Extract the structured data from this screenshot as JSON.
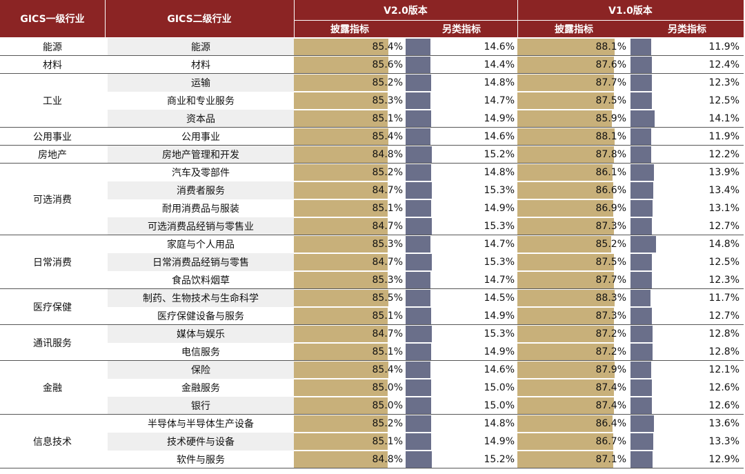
{
  "header": {
    "gics1": "GICS一级行业",
    "gics2": "GICS二级行业",
    "v2": "V2.0版本",
    "v1": "V1.0版本",
    "disclosure": "披露指标",
    "alternative": "另类指标"
  },
  "colors": {
    "header_bg": "#8b2424",
    "gold_bar": "#c8b07a",
    "blue_bar": "#6a6f8a"
  },
  "groups": [
    {
      "l1": "能源",
      "rows": [
        {
          "l2": "能源",
          "v2_disc": "85.4%",
          "v2_alt": "14.6%",
          "v1_disc": "88.1%",
          "v1_alt": "11.9%"
        }
      ]
    },
    {
      "l1": "材料",
      "rows": [
        {
          "l2": "材料",
          "v2_disc": "85.6%",
          "v2_alt": "14.4%",
          "v1_disc": "87.6%",
          "v1_alt": "12.4%"
        }
      ]
    },
    {
      "l1": "工业",
      "rows": [
        {
          "l2": "运输",
          "v2_disc": "85.2%",
          "v2_alt": "14.8%",
          "v1_disc": "87.7%",
          "v1_alt": "12.3%"
        },
        {
          "l2": "商业和专业服务",
          "v2_disc": "85.3%",
          "v2_alt": "14.7%",
          "v1_disc": "87.5%",
          "v1_alt": "12.5%"
        },
        {
          "l2": "资本品",
          "v2_disc": "85.1%",
          "v2_alt": "14.9%",
          "v1_disc": "85.9%",
          "v1_alt": "14.1%"
        }
      ]
    },
    {
      "l1": "公用事业",
      "rows": [
        {
          "l2": "公用事业",
          "v2_disc": "85.4%",
          "v2_alt": "14.6%",
          "v1_disc": "88.1%",
          "v1_alt": "11.9%"
        }
      ]
    },
    {
      "l1": "房地产",
      "rows": [
        {
          "l2": "房地产管理和开发",
          "v2_disc": "84.8%",
          "v2_alt": "15.2%",
          "v1_disc": "87.8%",
          "v1_alt": "12.2%"
        }
      ]
    },
    {
      "l1": "可选消费",
      "rows": [
        {
          "l2": "汽车及零部件",
          "v2_disc": "85.2%",
          "v2_alt": "14.8%",
          "v1_disc": "86.1%",
          "v1_alt": "13.9%"
        },
        {
          "l2": "消费者服务",
          "v2_disc": "84.7%",
          "v2_alt": "15.3%",
          "v1_disc": "86.6%",
          "v1_alt": "13.4%"
        },
        {
          "l2": "耐用消费品与服装",
          "v2_disc": "85.1%",
          "v2_alt": "14.9%",
          "v1_disc": "86.9%",
          "v1_alt": "13.1%"
        },
        {
          "l2": "可选消费品经销与零售业",
          "v2_disc": "84.7%",
          "v2_alt": "15.3%",
          "v1_disc": "87.3%",
          "v1_alt": "12.7%"
        }
      ]
    },
    {
      "l1": "日常消费",
      "rows": [
        {
          "l2": "家庭与个人用品",
          "v2_disc": "85.3%",
          "v2_alt": "14.7%",
          "v1_disc": "85.2%",
          "v1_alt": "14.8%"
        },
        {
          "l2": "日常消费品经销与零售",
          "v2_disc": "84.7%",
          "v2_alt": "15.3%",
          "v1_disc": "87.5%",
          "v1_alt": "12.5%"
        },
        {
          "l2": "食品饮料烟草",
          "v2_disc": "85.3%",
          "v2_alt": "14.7%",
          "v1_disc": "87.7%",
          "v1_alt": "12.3%"
        }
      ]
    },
    {
      "l1": "医疗保健",
      "rows": [
        {
          "l2": "制药、生物技术与生命科学",
          "v2_disc": "85.5%",
          "v2_alt": "14.5%",
          "v1_disc": "88.3%",
          "v1_alt": "11.7%"
        },
        {
          "l2": "医疗保健设备与服务",
          "v2_disc": "85.1%",
          "v2_alt": "14.9%",
          "v1_disc": "87.3%",
          "v1_alt": "12.7%"
        }
      ]
    },
    {
      "l1": "通讯服务",
      "rows": [
        {
          "l2": "媒体与娱乐",
          "v2_disc": "84.7%",
          "v2_alt": "15.3%",
          "v1_disc": "87.2%",
          "v1_alt": "12.8%"
        },
        {
          "l2": "电信服务",
          "v2_disc": "85.1%",
          "v2_alt": "14.9%",
          "v1_disc": "87.2%",
          "v1_alt": "12.8%"
        }
      ]
    },
    {
      "l1": "金融",
      "rows": [
        {
          "l2": "保险",
          "v2_disc": "85.4%",
          "v2_alt": "14.6%",
          "v1_disc": "87.9%",
          "v1_alt": "12.1%"
        },
        {
          "l2": "金融服务",
          "v2_disc": "85.0%",
          "v2_alt": "15.0%",
          "v1_disc": "87.4%",
          "v1_alt": "12.6%"
        },
        {
          "l2": "银行",
          "v2_disc": "85.0%",
          "v2_alt": "15.0%",
          "v1_disc": "87.4%",
          "v1_alt": "12.6%"
        }
      ]
    },
    {
      "l1": "信息技术",
      "rows": [
        {
          "l2": "半导体与半导体生产设备",
          "v2_disc": "85.2%",
          "v2_alt": "14.8%",
          "v1_disc": "86.4%",
          "v1_alt": "13.6%"
        },
        {
          "l2": "技术硬件与设备",
          "v2_disc": "85.1%",
          "v2_alt": "14.9%",
          "v1_disc": "86.7%",
          "v1_alt": "13.3%"
        },
        {
          "l2": "软件与服务",
          "v2_disc": "84.8%",
          "v2_alt": "15.2%",
          "v1_disc": "87.1%",
          "v1_alt": "12.9%"
        }
      ]
    }
  ]
}
